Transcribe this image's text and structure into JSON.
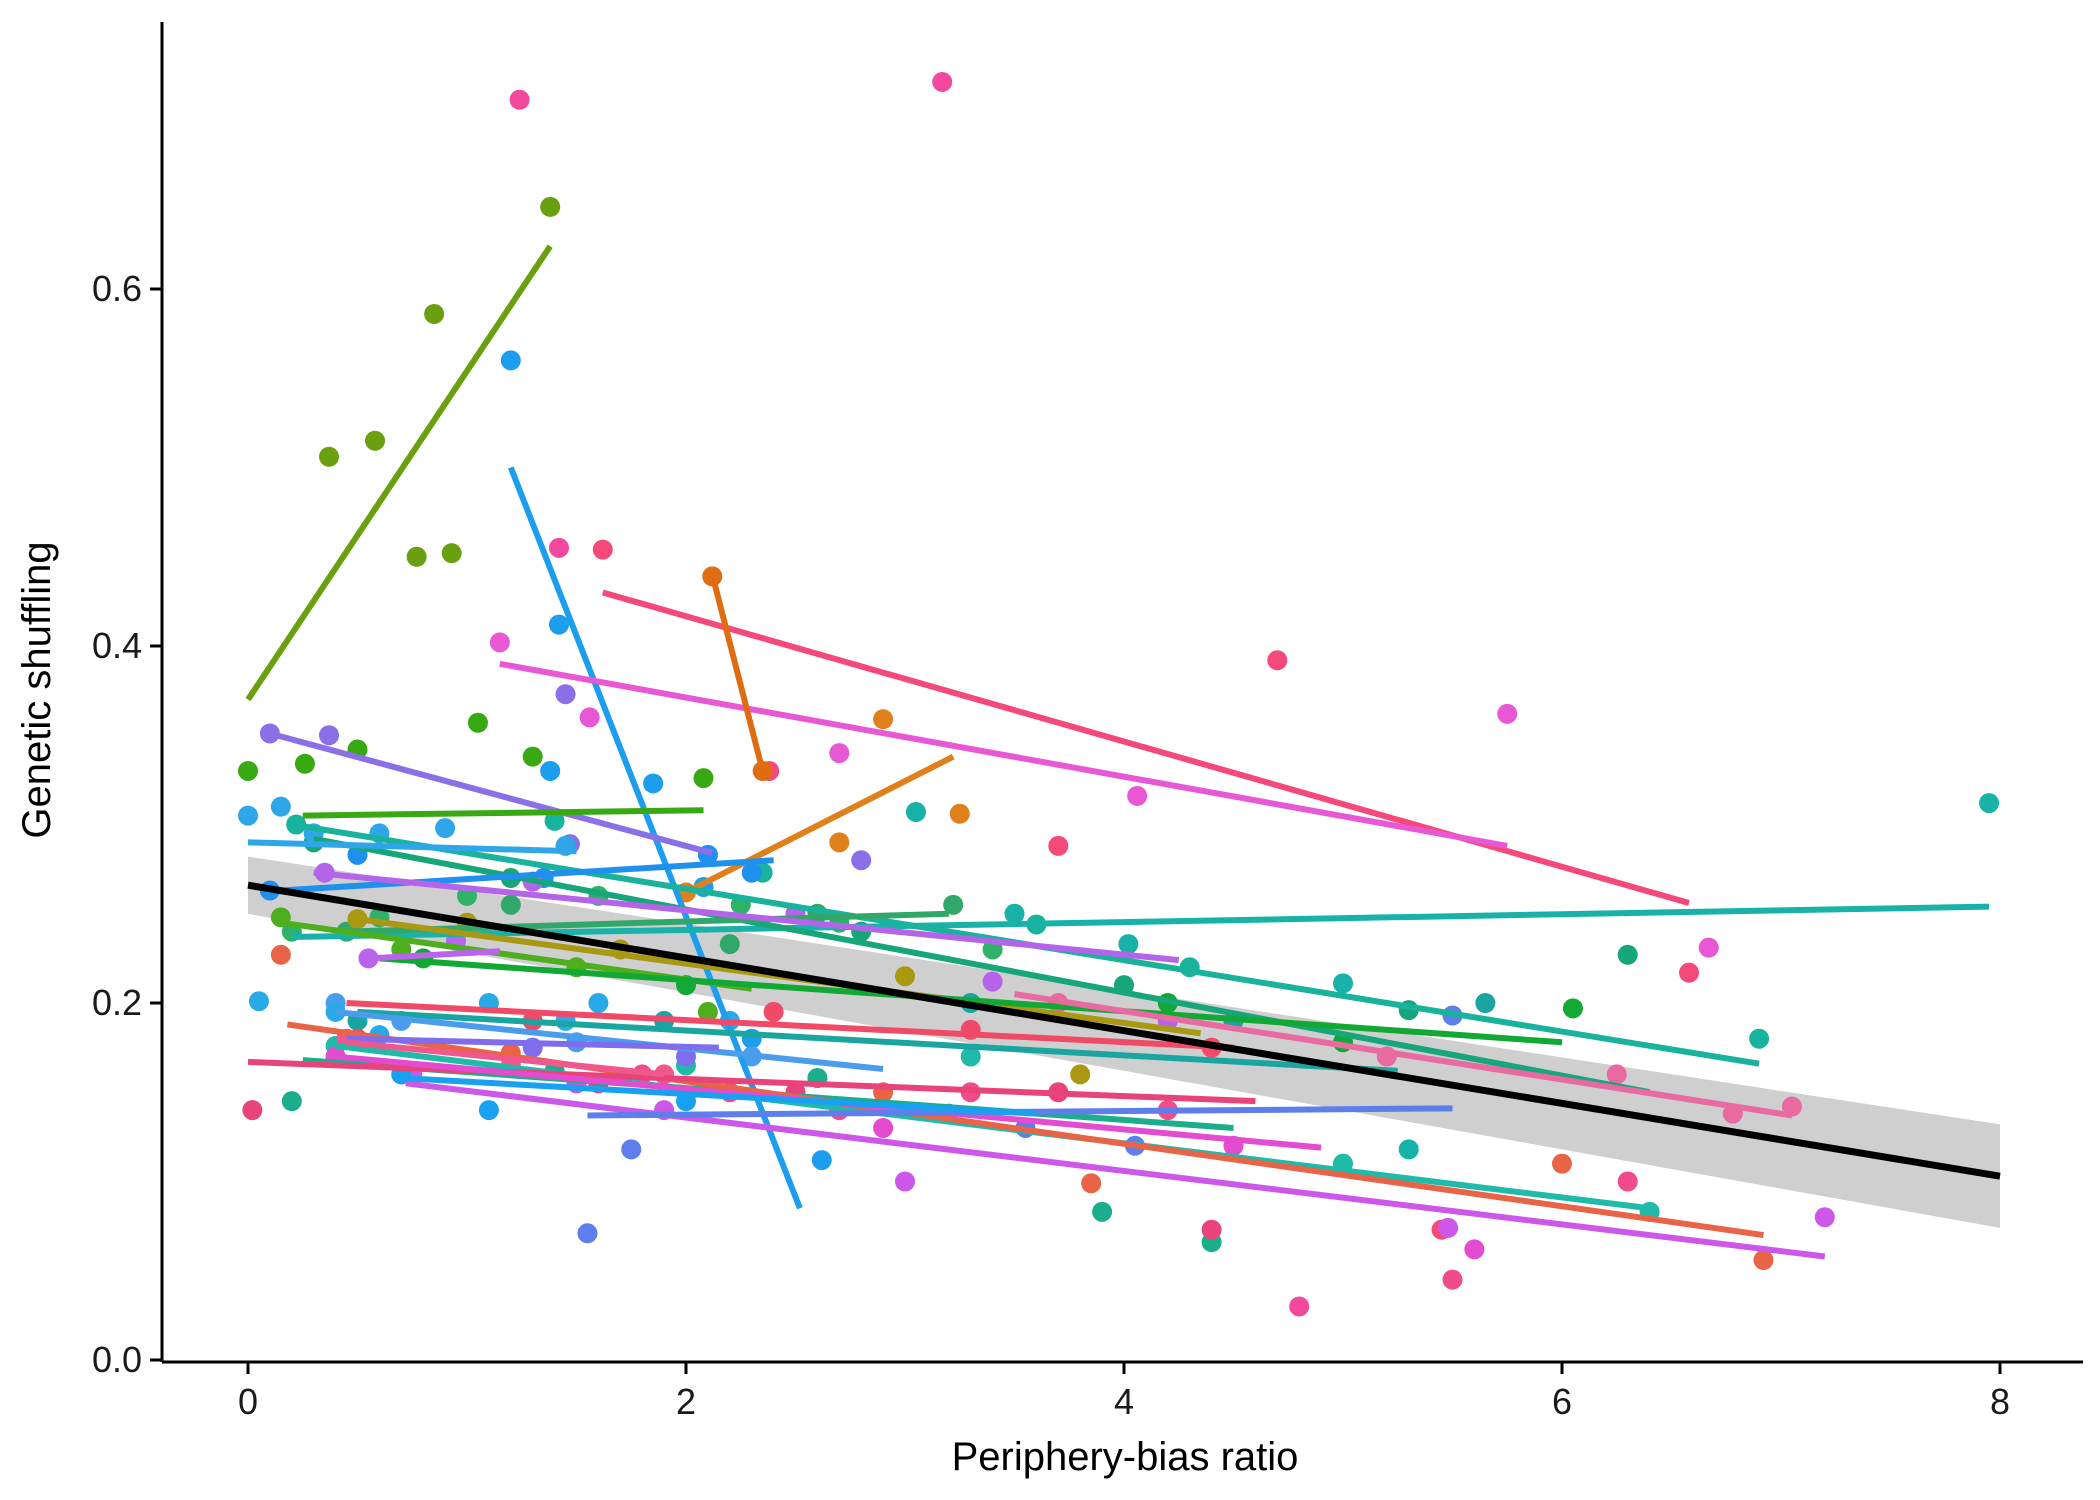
{
  "chart_data": {
    "type": "scatter",
    "xlabel": "Periphery-bias ratio",
    "ylabel": "Genetic shuffling",
    "xlim": [
      -0.45,
      8.45
    ],
    "ylim": [
      -0.01,
      0.75
    ],
    "x_ticks": [
      0,
      2,
      4,
      6,
      8
    ],
    "x_tick_labels": [
      "0",
      "2",
      "4",
      "6",
      "8"
    ],
    "y_ticks": [
      0.0,
      0.2,
      0.4,
      0.6
    ],
    "y_tick_labels": [
      "0.0",
      "0.2",
      "0.4",
      "0.6"
    ],
    "grid": false,
    "legend": "none",
    "overall_fit": {
      "color": "#000000",
      "ribbon_color": "#cccccc",
      "line": [
        [
          0,
          0.266
        ],
        [
          8,
          0.103
        ]
      ],
      "ribbon": [
        [
          0,
          0.25,
          0.282
        ],
        [
          8,
          0.074,
          0.132
        ]
      ]
    },
    "groups": [
      {
        "color": "#6aa00f",
        "line": [
          [
            0,
            0.37
          ],
          [
            1.38,
            0.624
          ]
        ],
        "points": [
          [
            0.37,
            0.506
          ],
          [
            0.58,
            0.515
          ],
          [
            0.77,
            0.45
          ],
          [
            0.85,
            0.586
          ],
          [
            0.93,
            0.452
          ],
          [
            1.38,
            0.646
          ]
        ]
      },
      {
        "color": "#1c9ded",
        "line": [
          [
            1.2,
            0.5
          ],
          [
            2.52,
            0.085
          ]
        ],
        "points": [
          [
            1.2,
            0.56
          ],
          [
            1.42,
            0.412
          ],
          [
            1.38,
            0.33
          ],
          [
            1.85,
            0.323
          ],
          [
            2.08,
            0.265
          ],
          [
            2.3,
            0.18
          ],
          [
            2.62,
            0.112
          ]
        ]
      },
      {
        "color": "#f5497a",
        "line": [
          [
            1.62,
            0.43
          ],
          [
            6.58,
            0.256
          ]
        ],
        "points": [
          [
            1.62,
            0.454
          ],
          [
            2.38,
            0.33
          ],
          [
            3.7,
            0.288
          ],
          [
            4.7,
            0.392
          ],
          [
            6.58,
            0.217
          ],
          [
            5.45,
            0.073
          ]
        ]
      },
      {
        "color": "#e858d4",
        "line": [
          [
            1.15,
            0.39
          ],
          [
            5.75,
            0.288
          ]
        ],
        "points": [
          [
            1.15,
            0.402
          ],
          [
            1.56,
            0.36
          ],
          [
            2.7,
            0.34
          ],
          [
            4.06,
            0.316
          ],
          [
            5.75,
            0.362
          ],
          [
            6.67,
            0.231
          ]
        ]
      },
      {
        "color": "#e06c12",
        "line": [
          [
            2.12,
            0.44
          ],
          [
            2.35,
            0.33
          ]
        ],
        "points": [
          [
            2.12,
            0.439
          ],
          [
            2.35,
            0.33
          ]
        ]
      },
      {
        "color": "#e0801a",
        "line": [
          [
            2.0,
            0.262
          ],
          [
            3.22,
            0.338
          ]
        ],
        "points": [
          [
            2.0,
            0.262
          ],
          [
            2.9,
            0.359
          ],
          [
            3.25,
            0.306
          ],
          [
            2.7,
            0.29
          ]
        ]
      },
      {
        "color": "#8b6fe6",
        "line": [
          [
            0.1,
            0.351
          ],
          [
            2.12,
            0.284
          ]
        ],
        "points": [
          [
            0.1,
            0.351
          ],
          [
            0.37,
            0.35
          ],
          [
            1.45,
            0.373
          ],
          [
            1.47,
            0.289
          ],
          [
            2.8,
            0.28
          ]
        ]
      },
      {
        "color": "#39a913",
        "line": [
          [
            0.25,
            0.305
          ],
          [
            2.08,
            0.308
          ]
        ],
        "points": [
          [
            0.0,
            0.33
          ],
          [
            0.26,
            0.334
          ],
          [
            0.5,
            0.342
          ],
          [
            1.05,
            0.357
          ],
          [
            1.3,
            0.338
          ],
          [
            2.08,
            0.326
          ]
        ]
      },
      {
        "color": "#18b2a8",
        "line": [
          [
            0.2,
            0.237
          ],
          [
            7.95,
            0.254
          ]
        ],
        "points": [
          [
            3.05,
            0.307
          ],
          [
            3.5,
            0.25
          ],
          [
            4.02,
            0.233
          ],
          [
            5.0,
            0.211
          ],
          [
            7.95,
            0.312
          ],
          [
            5.3,
            0.118
          ]
        ]
      },
      {
        "color": "#19b39d",
        "line": [
          [
            0.2,
            0.3
          ],
          [
            6.9,
            0.166
          ]
        ],
        "points": [
          [
            0.22,
            0.3
          ],
          [
            1.4,
            0.302
          ],
          [
            2.35,
            0.273
          ],
          [
            3.6,
            0.244
          ],
          [
            4.3,
            0.22
          ],
          [
            6.9,
            0.18
          ]
        ]
      },
      {
        "color": "#17a67a",
        "line": [
          [
            0.3,
            0.292
          ],
          [
            6.4,
            0.15
          ]
        ],
        "points": [
          [
            0.3,
            0.29
          ],
          [
            1.2,
            0.27
          ],
          [
            2.8,
            0.24
          ],
          [
            4.0,
            0.21
          ],
          [
            5.3,
            0.196
          ],
          [
            6.3,
            0.227
          ]
        ]
      },
      {
        "color": "#2fa6e8",
        "line": [
          [
            0.0,
            0.29
          ],
          [
            1.5,
            0.285
          ]
        ],
        "points": [
          [
            0.0,
            0.305
          ],
          [
            0.15,
            0.31
          ],
          [
            0.3,
            0.295
          ],
          [
            0.6,
            0.295
          ],
          [
            0.9,
            0.298
          ],
          [
            1.45,
            0.288
          ]
        ]
      },
      {
        "color": "#1f90ee",
        "line": [
          [
            0.15,
            0.263
          ],
          [
            2.4,
            0.28
          ]
        ],
        "points": [
          [
            0.1,
            0.263
          ],
          [
            0.5,
            0.283
          ],
          [
            1.35,
            0.27
          ],
          [
            2.1,
            0.283
          ],
          [
            2.3,
            0.273
          ]
        ]
      },
      {
        "color": "#31a86a",
        "line": [
          [
            0.45,
            0.24
          ],
          [
            3.2,
            0.25
          ]
        ],
        "points": [
          [
            0.45,
            0.24
          ],
          [
            1.2,
            0.255
          ],
          [
            2.2,
            0.233
          ],
          [
            2.6,
            0.25
          ],
          [
            3.22,
            0.255
          ]
        ]
      },
      {
        "color": "#a89812",
        "line": [
          [
            0.5,
            0.247
          ],
          [
            4.35,
            0.183
          ]
        ],
        "points": [
          [
            0.5,
            0.247
          ],
          [
            1.0,
            0.245
          ],
          [
            1.7,
            0.23
          ],
          [
            3.0,
            0.215
          ],
          [
            3.8,
            0.16
          ]
        ]
      },
      {
        "color": "#b464e8",
        "line": [
          [
            0.3,
            0.273
          ],
          [
            4.25,
            0.224
          ]
        ],
        "points": [
          [
            0.35,
            0.273
          ],
          [
            1.3,
            0.268
          ],
          [
            2.5,
            0.25
          ],
          [
            3.4,
            0.212
          ],
          [
            4.2,
            0.19
          ]
        ]
      },
      {
        "color": "#4daf1e",
        "line": [
          [
            0.15,
            0.245
          ],
          [
            2.3,
            0.208
          ]
        ],
        "points": [
          [
            0.15,
            0.248
          ],
          [
            0.7,
            0.23
          ],
          [
            1.5,
            0.22
          ],
          [
            2.1,
            0.195
          ]
        ]
      },
      {
        "color": "#12a834",
        "line": [
          [
            0.6,
            0.225
          ],
          [
            6.0,
            0.178
          ]
        ],
        "points": [
          [
            0.8,
            0.225
          ],
          [
            2.0,
            0.21
          ],
          [
            4.2,
            0.2
          ],
          [
            6.05,
            0.197
          ],
          [
            5.0,
            0.178
          ]
        ]
      },
      {
        "color": "#1aa5a1",
        "line": [
          [
            0.5,
            0.195
          ],
          [
            5.25,
            0.162
          ]
        ],
        "points": [
          [
            0.5,
            0.19
          ],
          [
            1.9,
            0.19
          ],
          [
            3.3,
            0.2
          ],
          [
            4.5,
            0.19
          ],
          [
            5.65,
            0.2
          ]
        ]
      },
      {
        "color": "#1fbaa8",
        "line": [
          [
            0.4,
            0.176
          ],
          [
            6.4,
            0.085
          ]
        ],
        "points": [
          [
            0.4,
            0.176
          ],
          [
            2.0,
            0.165
          ],
          [
            3.3,
            0.17
          ],
          [
            5.0,
            0.11
          ],
          [
            6.4,
            0.083
          ]
        ]
      },
      {
        "color": "#1cad8a",
        "line": [
          [
            0.25,
            0.168
          ],
          [
            4.5,
            0.13
          ]
        ],
        "points": [
          [
            0.2,
            0.145
          ],
          [
            1.4,
            0.162
          ],
          [
            2.6,
            0.158
          ],
          [
            3.9,
            0.083
          ],
          [
            4.4,
            0.066
          ]
        ]
      },
      {
        "color": "#e96446",
        "line": [
          [
            0.18,
            0.188
          ],
          [
            6.92,
            0.07
          ]
        ],
        "points": [
          [
            0.15,
            0.227
          ],
          [
            1.2,
            0.172
          ],
          [
            2.9,
            0.15
          ],
          [
            3.85,
            0.099
          ],
          [
            6.0,
            0.11
          ],
          [
            6.92,
            0.056
          ]
        ]
      },
      {
        "color": "#e8437a",
        "line": [
          [
            0.0,
            0.167
          ],
          [
            4.6,
            0.145
          ]
        ],
        "points": [
          [
            0.02,
            0.14
          ],
          [
            0.7,
            0.16
          ],
          [
            1.6,
            0.155
          ],
          [
            2.5,
            0.15
          ],
          [
            3.7,
            0.15
          ],
          [
            4.4,
            0.073
          ]
        ]
      },
      {
        "color": "#f04a68",
        "line": [
          [
            0.45,
            0.2
          ],
          [
            4.5,
            0.175
          ]
        ],
        "points": [
          [
            0.5,
            0.18
          ],
          [
            1.3,
            0.19
          ],
          [
            2.4,
            0.195
          ],
          [
            3.3,
            0.185
          ],
          [
            4.4,
            0.175
          ]
        ]
      },
      {
        "color": "#cc57e8",
        "line": [
          [
            0.72,
            0.155
          ],
          [
            7.2,
            0.058
          ]
        ],
        "points": [
          [
            0.75,
            0.16
          ],
          [
            1.9,
            0.14
          ],
          [
            3.0,
            0.1
          ],
          [
            5.48,
            0.074
          ],
          [
            7.2,
            0.08
          ]
        ]
      },
      {
        "color": "#e34bd1",
        "line": [
          [
            0.4,
            0.17
          ],
          [
            4.9,
            0.119
          ]
        ],
        "points": [
          [
            0.4,
            0.17
          ],
          [
            1.5,
            0.155
          ],
          [
            2.9,
            0.13
          ],
          [
            4.5,
            0.12
          ],
          [
            5.6,
            0.062
          ]
        ]
      },
      {
        "color": "#e96aa0",
        "line": [
          [
            3.5,
            0.205
          ],
          [
            7.05,
            0.137
          ]
        ],
        "points": [
          [
            3.7,
            0.2
          ],
          [
            5.2,
            0.17
          ],
          [
            6.25,
            0.16
          ],
          [
            6.78,
            0.138
          ],
          [
            7.05,
            0.142
          ]
        ]
      },
      {
        "color": "#5e7eeb",
        "line": [
          [
            1.55,
            0.137
          ],
          [
            5.5,
            0.141
          ]
        ],
        "points": [
          [
            1.55,
            0.071
          ],
          [
            1.75,
            0.118
          ],
          [
            3.55,
            0.13
          ],
          [
            4.05,
            0.12
          ],
          [
            5.5,
            0.193
          ]
        ]
      },
      {
        "color": "#4a9ded",
        "line": [
          [
            0.4,
            0.195
          ],
          [
            2.9,
            0.163
          ]
        ],
        "points": [
          [
            0.4,
            0.2
          ],
          [
            0.7,
            0.19
          ],
          [
            1.5,
            0.178
          ],
          [
            2.3,
            0.17
          ]
        ]
      },
      {
        "color": "#18a1f0",
        "line": [
          [
            0.7,
            0.158
          ],
          [
            3.6,
            0.138
          ]
        ],
        "points": [
          [
            0.7,
            0.16
          ],
          [
            1.1,
            0.14
          ],
          [
            2.0,
            0.145
          ],
          [
            3.2,
            0.138
          ]
        ]
      },
      {
        "color": "#ba63ec",
        "line": [
          [
            0.55,
            0.225
          ],
          [
            1.15,
            0.229
          ]
        ],
        "points": [
          [
            0.55,
            0.225
          ],
          [
            0.95,
            0.235
          ]
        ]
      },
      {
        "color": "#7f6ded",
        "line": [
          [
            0.45,
            0.18
          ],
          [
            2.15,
            0.175
          ]
        ],
        "points": [
          [
            0.45,
            0.18
          ],
          [
            1.3,
            0.175
          ],
          [
            2.0,
            0.17
          ]
        ]
      },
      {
        "color": "#f0578c",
        "line": [
          [
            0.45,
            0.178
          ],
          [
            1.9,
            0.16
          ]
        ],
        "points": [
          [
            0.45,
            0.18
          ],
          [
            1.2,
            0.165
          ],
          [
            1.9,
            0.16
          ]
        ]
      },
      {
        "color": "#f2489e",
        "points": [
          [
            1.24,
            0.706
          ],
          [
            3.17,
            0.716
          ],
          [
            1.42,
            0.455
          ],
          [
            4.8,
            0.03
          ]
        ]
      },
      {
        "color": "#2aa9e8",
        "points": [
          [
            0.05,
            0.201
          ],
          [
            0.4,
            0.195
          ],
          [
            0.6,
            0.182
          ],
          [
            1.1,
            0.2
          ],
          [
            1.45,
            0.19
          ],
          [
            1.6,
            0.2
          ],
          [
            2.2,
            0.19
          ]
        ]
      },
      {
        "color": "#2fb268",
        "points": [
          [
            0.2,
            0.24
          ],
          [
            0.6,
            0.248
          ],
          [
            1.0,
            0.26
          ],
          [
            1.6,
            0.26
          ],
          [
            2.25,
            0.255
          ],
          [
            2.7,
            0.245
          ],
          [
            3.4,
            0.23
          ]
        ]
      },
      {
        "color": "#f04c8c",
        "points": [
          [
            1.8,
            0.16
          ],
          [
            2.2,
            0.15
          ],
          [
            2.7,
            0.14
          ],
          [
            3.3,
            0.15
          ],
          [
            4.2,
            0.14
          ],
          [
            5.5,
            0.045
          ],
          [
            6.3,
            0.1
          ]
        ]
      }
    ]
  }
}
